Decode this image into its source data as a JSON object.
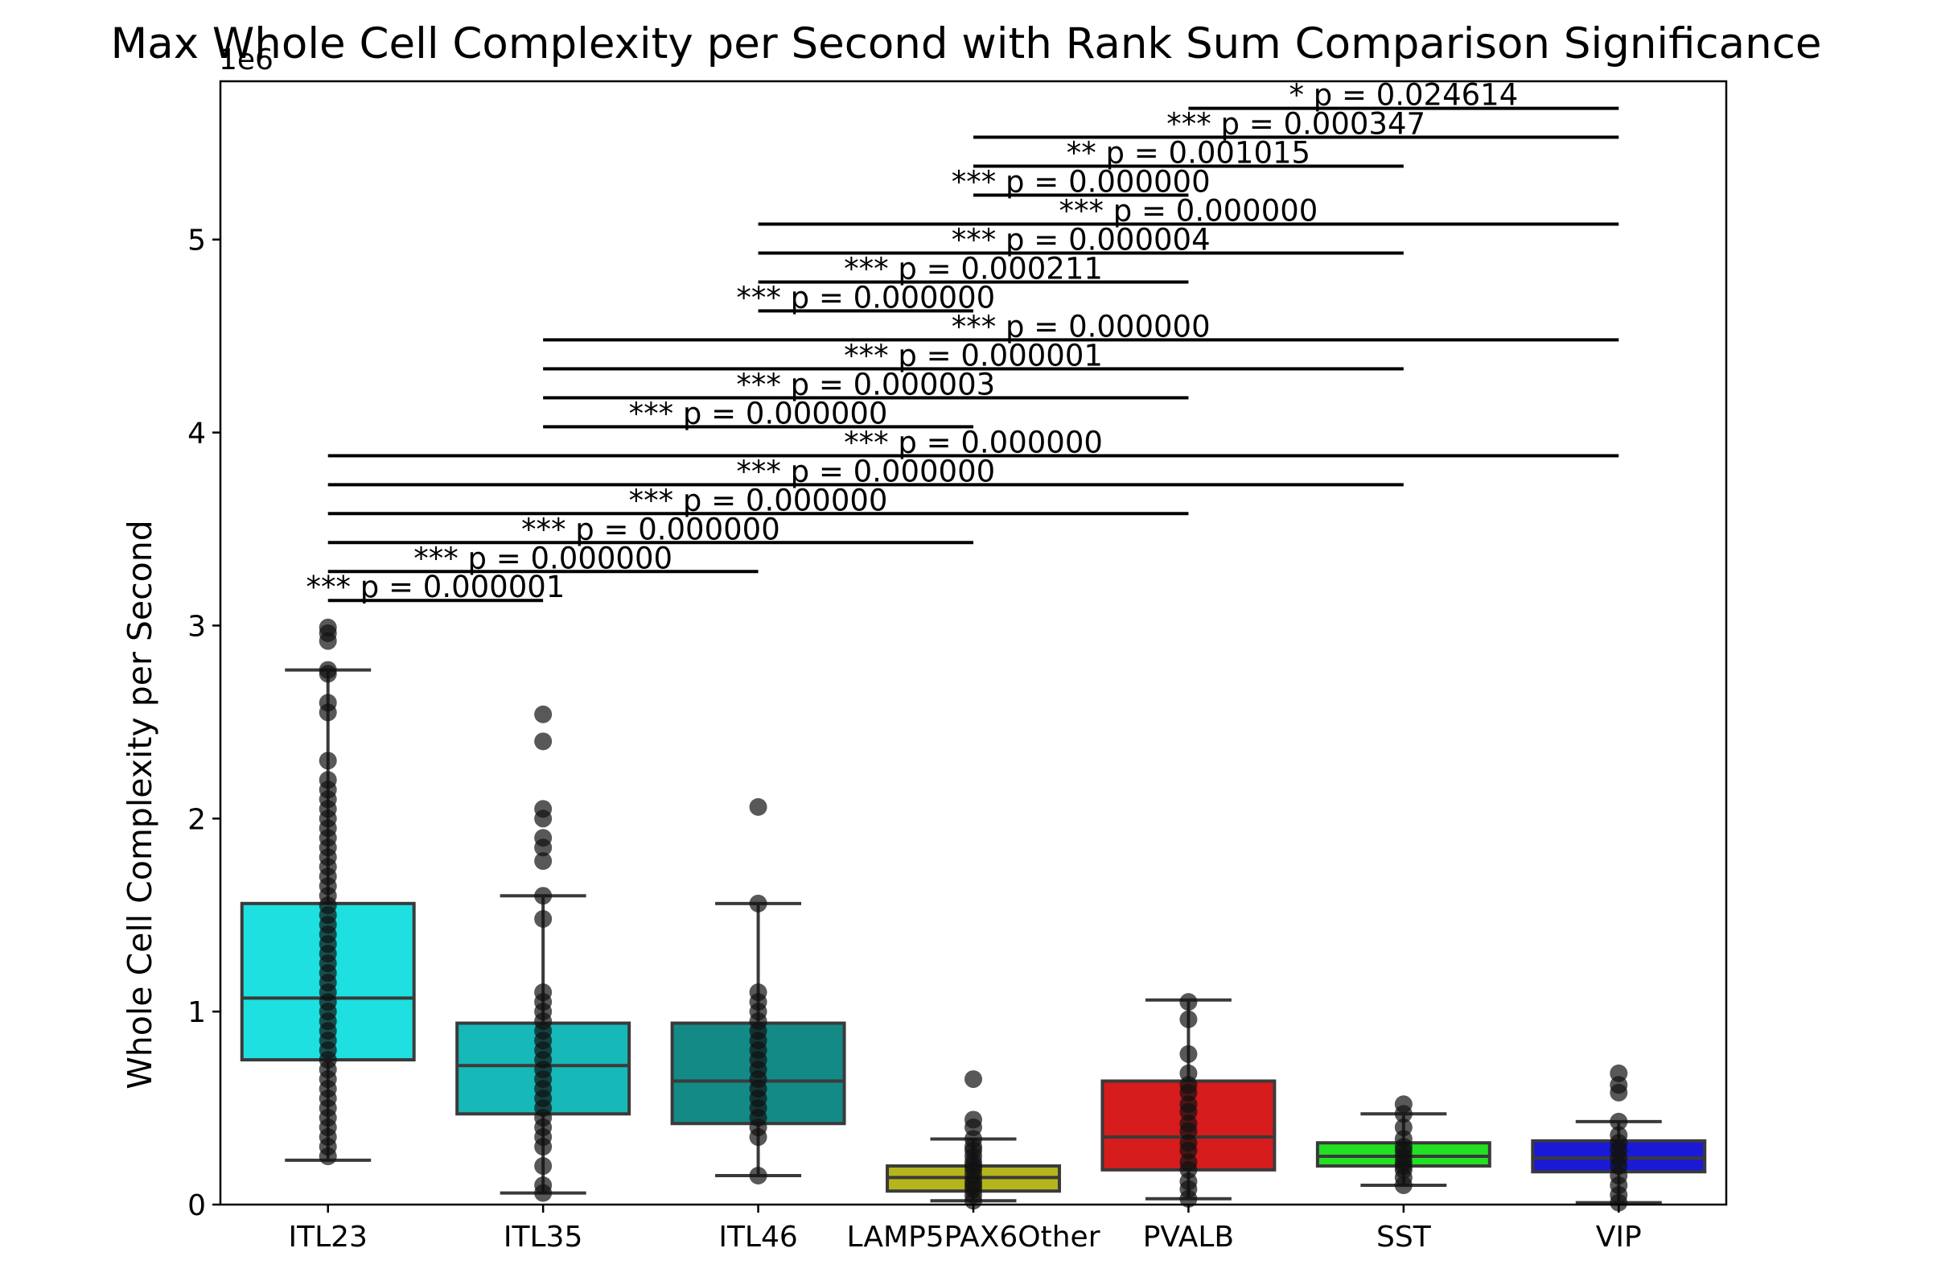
{
  "chart_data": {
    "type": "box",
    "title": "Max Whole Cell Complexity per Second with Rank Sum Comparison Significance",
    "xlabel": "",
    "ylabel": "Whole Cell Complexity per Second",
    "y_offset_label": "1e6",
    "ylim": [
      0,
      5.82
    ],
    "yticks": [
      0,
      1,
      2,
      3,
      4,
      5
    ],
    "grid": false,
    "categories": [
      "ITL23",
      "ITL35",
      "ITL46",
      "LAMP5PAX6Other",
      "PVALB",
      "SST",
      "VIP"
    ],
    "boxes": [
      {
        "name": "ITL23",
        "color": "#1ee0e0",
        "whislo": 0.23,
        "q1": 0.75,
        "med": 1.07,
        "q3": 1.56,
        "whishi": 2.77,
        "points": [
          0.25,
          0.3,
          0.35,
          0.4,
          0.45,
          0.5,
          0.55,
          0.6,
          0.65,
          0.7,
          0.75,
          0.8,
          0.85,
          0.9,
          0.95,
          1.0,
          1.05,
          1.1,
          1.15,
          1.2,
          1.25,
          1.3,
          1.35,
          1.4,
          1.45,
          1.5,
          1.55,
          1.6,
          1.65,
          1.7,
          1.75,
          1.8,
          1.85,
          1.9,
          1.95,
          2.0,
          2.05,
          2.1,
          2.15,
          2.2,
          2.3,
          2.55,
          2.6,
          2.75,
          2.77,
          2.92,
          2.96,
          2.99
        ]
      },
      {
        "name": "ITL35",
        "color": "#16b8b8",
        "whislo": 0.06,
        "q1": 0.47,
        "med": 0.72,
        "q3": 0.94,
        "whishi": 1.6,
        "points": [
          0.06,
          0.1,
          0.2,
          0.3,
          0.35,
          0.4,
          0.45,
          0.5,
          0.55,
          0.6,
          0.65,
          0.7,
          0.75,
          0.8,
          0.85,
          0.9,
          0.95,
          1.0,
          1.05,
          1.1,
          1.48,
          1.6,
          1.78,
          1.85,
          1.9,
          2.0,
          2.05,
          2.4,
          2.54
        ]
      },
      {
        "name": "ITL46",
        "color": "#148a87",
        "whislo": 0.15,
        "q1": 0.42,
        "med": 0.64,
        "q3": 0.94,
        "whishi": 1.56,
        "points": [
          0.15,
          0.35,
          0.4,
          0.45,
          0.5,
          0.55,
          0.6,
          0.65,
          0.7,
          0.75,
          0.8,
          0.85,
          0.9,
          0.95,
          1.0,
          1.05,
          1.1,
          1.56,
          2.06
        ]
      },
      {
        "name": "LAMP5PAX6Other",
        "color": "#b5b51c",
        "whislo": 0.02,
        "q1": 0.07,
        "med": 0.14,
        "q3": 0.2,
        "whishi": 0.34,
        "points": [
          0.02,
          0.05,
          0.08,
          0.1,
          0.12,
          0.15,
          0.18,
          0.2,
          0.22,
          0.25,
          0.28,
          0.3,
          0.34,
          0.4,
          0.44,
          0.65
        ]
      },
      {
        "name": "PVALB",
        "color": "#d61c1c",
        "whislo": 0.03,
        "q1": 0.18,
        "med": 0.35,
        "q3": 0.64,
        "whishi": 1.06,
        "points": [
          0.03,
          0.08,
          0.12,
          0.18,
          0.22,
          0.28,
          0.32,
          0.38,
          0.42,
          0.48,
          0.52,
          0.58,
          0.62,
          0.68,
          0.78,
          0.96,
          1.05
        ]
      },
      {
        "name": "SST",
        "color": "#22e022",
        "whislo": 0.1,
        "q1": 0.2,
        "med": 0.25,
        "q3": 0.32,
        "whishi": 0.47,
        "points": [
          0.1,
          0.14,
          0.18,
          0.2,
          0.22,
          0.25,
          0.28,
          0.3,
          0.34,
          0.4,
          0.47,
          0.52
        ]
      },
      {
        "name": "VIP",
        "color": "#1a1ad6",
        "whislo": 0.01,
        "q1": 0.17,
        "med": 0.24,
        "q3": 0.33,
        "whishi": 0.43,
        "points": [
          0.01,
          0.05,
          0.1,
          0.15,
          0.2,
          0.24,
          0.28,
          0.32,
          0.36,
          0.43,
          0.58,
          0.62,
          0.68
        ]
      }
    ],
    "significance": [
      {
        "a": "ITL23",
        "b": "ITL35",
        "y": 3.13,
        "label": "*** p = 0.000001"
      },
      {
        "a": "ITL23",
        "b": "ITL46",
        "y": 3.28,
        "label": "*** p = 0.000000"
      },
      {
        "a": "ITL23",
        "b": "LAMP5PAX6Other",
        "y": 3.43,
        "label": "*** p = 0.000000"
      },
      {
        "a": "ITL23",
        "b": "PVALB",
        "y": 3.58,
        "label": "*** p = 0.000000"
      },
      {
        "a": "ITL23",
        "b": "SST",
        "y": 3.73,
        "label": "*** p = 0.000000"
      },
      {
        "a": "ITL23",
        "b": "VIP",
        "y": 3.88,
        "label": "*** p = 0.000000"
      },
      {
        "a": "ITL35",
        "b": "LAMP5PAX6Other",
        "y": 4.03,
        "label": "*** p = 0.000000"
      },
      {
        "a": "ITL35",
        "b": "PVALB",
        "y": 4.18,
        "label": "*** p = 0.000003"
      },
      {
        "a": "ITL35",
        "b": "SST",
        "y": 4.33,
        "label": "*** p = 0.000001"
      },
      {
        "a": "ITL35",
        "b": "VIP",
        "y": 4.48,
        "label": "*** p = 0.000000"
      },
      {
        "a": "ITL46",
        "b": "LAMP5PAX6Other",
        "y": 4.63,
        "label": "*** p = 0.000000"
      },
      {
        "a": "ITL46",
        "b": "PVALB",
        "y": 4.78,
        "label": "*** p = 0.000211"
      },
      {
        "a": "ITL46",
        "b": "SST",
        "y": 4.93,
        "label": "*** p = 0.000004"
      },
      {
        "a": "ITL46",
        "b": "VIP",
        "y": 5.08,
        "label": "*** p = 0.000000"
      },
      {
        "a": "LAMP5PAX6Other",
        "b": "PVALB",
        "y": 5.23,
        "label": "*** p = 0.000000"
      },
      {
        "a": "LAMP5PAX6Other",
        "b": "SST",
        "y": 5.38,
        "label": "** p = 0.001015"
      },
      {
        "a": "LAMP5PAX6Other",
        "b": "VIP",
        "y": 5.53,
        "label": "*** p = 0.000347"
      },
      {
        "a": "PVALB",
        "b": "VIP",
        "y": 5.68,
        "label": "* p = 0.024614"
      }
    ]
  }
}
